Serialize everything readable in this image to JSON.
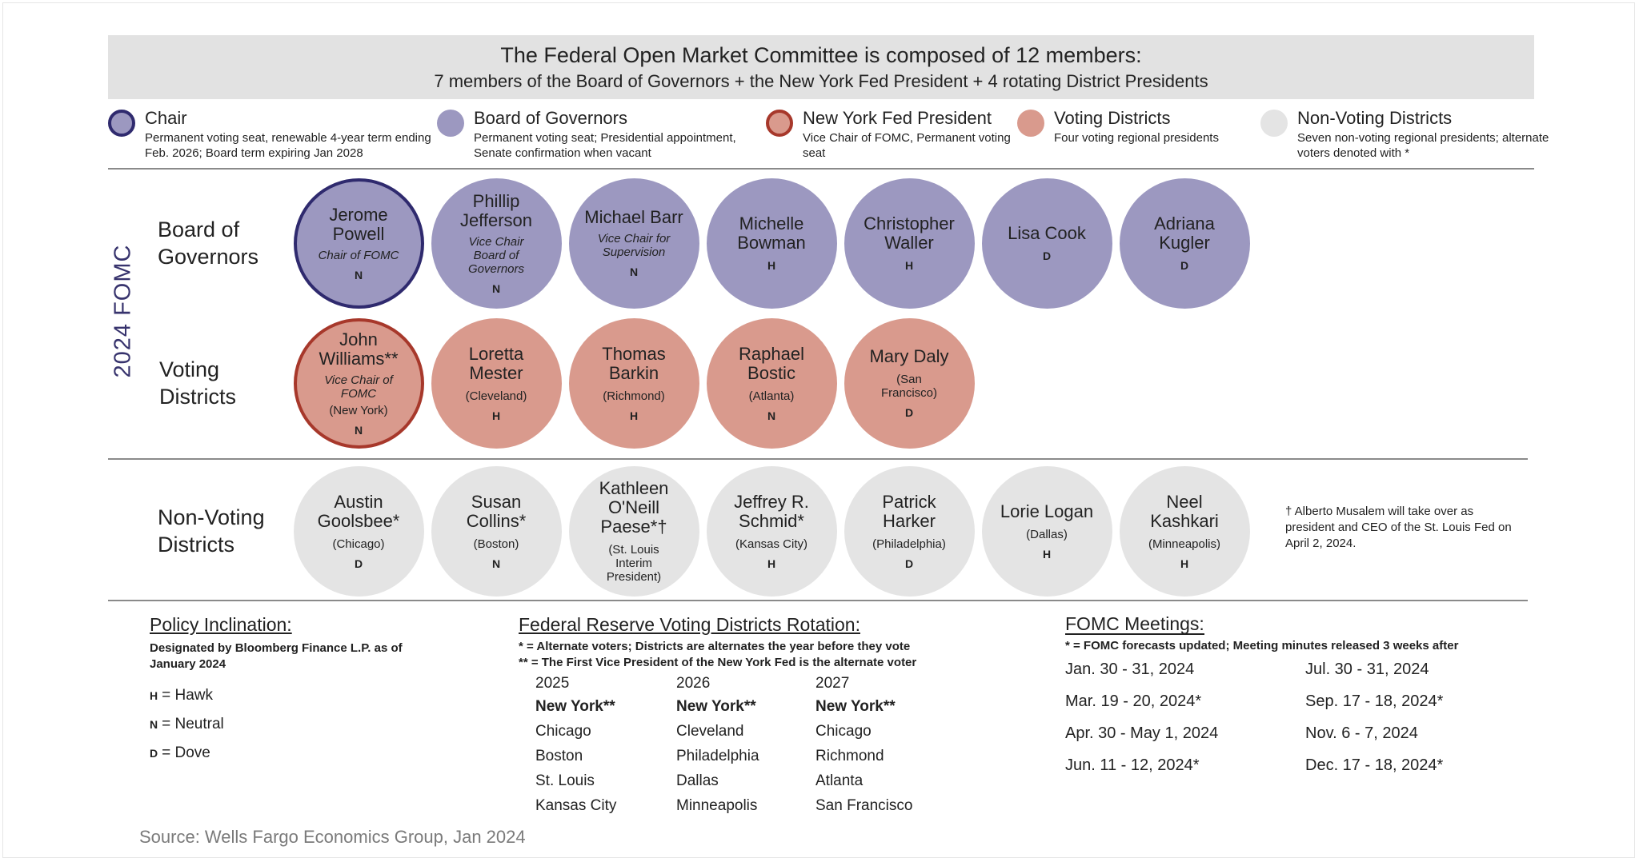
{
  "header": {
    "title": "The Federal Open Market Committee is composed of 12 members:",
    "subtitle": "7 members of the Board of Governors + the New York Fed President + 4 rotating District Presidents"
  },
  "legend": [
    {
      "label": "Chair",
      "description": "Permanent voting seat, renewable 4-year term ending Feb. 2026; Board term expiring Jan 2028",
      "color": "#9c98c0",
      "outline": "#2f2a6e"
    },
    {
      "label": "Board of Governors",
      "description": "Permanent voting seat; Presidential appointment, Senate confirmation when vacant",
      "color": "#9c98c0"
    },
    {
      "label": "New York Fed President",
      "description": "Vice Chair of FOMC, Permanent voting seat",
      "color": "#d99a8d",
      "outline": "#a7382b"
    },
    {
      "label": "Voting Districts",
      "description": "Four voting regional presidents",
      "color": "#d99a8d"
    },
    {
      "label": "Non-Voting Districts",
      "description": "Seven non-voting regional presidents; alternate voters denoted with *",
      "color": "#e4e4e4"
    }
  ],
  "side_label": "2024 FOMC",
  "groups": [
    {
      "label": "Board of Governors",
      "color": "#9c98c0",
      "members": [
        {
          "name": "Jerome Powell",
          "role": "Chair of FOMC",
          "inclination": "N",
          "outline": "#2f2a6e"
        },
        {
          "name": "Phillip Jefferson",
          "role": "Vice Chair Board of Governors",
          "inclination": "N"
        },
        {
          "name": "Michael Barr",
          "role": "Vice Chair for Supervision",
          "inclination": "N"
        },
        {
          "name": "Michelle Bowman",
          "inclination": "H"
        },
        {
          "name": "Christopher Waller",
          "inclination": "H"
        },
        {
          "name": "Lisa Cook",
          "inclination": "D"
        },
        {
          "name": "Adriana Kugler",
          "inclination": "D"
        }
      ]
    },
    {
      "label": "Voting Districts",
      "color": "#d99a8d",
      "members": [
        {
          "name": "John Williams**",
          "role": "Vice Chair of FOMC",
          "location": "(New York)",
          "inclination": "N",
          "outline": "#a7382b"
        },
        {
          "name": "Loretta Mester",
          "location": "(Cleveland)",
          "inclination": "H"
        },
        {
          "name": "Thomas Barkin",
          "location": "(Richmond)",
          "inclination": "H"
        },
        {
          "name": "Raphael Bostic",
          "location": "(Atlanta)",
          "inclination": "N"
        },
        {
          "name": "Mary Daly",
          "location": "(San Francisco)",
          "inclination": "D"
        }
      ]
    },
    {
      "label": "Non-Voting Districts",
      "color": "#e4e4e4",
      "members": [
        {
          "name": "Austin Goolsbee*",
          "location": "(Chicago)",
          "inclination": "D"
        },
        {
          "name": "Susan Collins*",
          "location": "(Boston)",
          "inclination": "N"
        },
        {
          "name": "Kathleen O'Neill Paese*†",
          "location": "(St. Louis Interim President)"
        },
        {
          "name": "Jeffrey R. Schmid*",
          "location": "(Kansas City)",
          "inclination": "H"
        },
        {
          "name": "Patrick Harker",
          "location": "(Philadelphia)",
          "inclination": "D"
        },
        {
          "name": "Lorie Logan",
          "location": "(Dallas)",
          "inclination": "H"
        },
        {
          "name": "Neel Kashkari",
          "location": "(Minneapolis)",
          "inclination": "H"
        }
      ]
    }
  ],
  "note": "† Alberto Musalem will take over as president and CEO of the St. Louis Fed on April 2, 2024.",
  "policy": {
    "title": "Policy Inclination:",
    "subtitle": "Designated by Bloomberg Finance L.P. as of January 2024",
    "items": [
      {
        "code": "H",
        "meaning": "= Hawk"
      },
      {
        "code": "N",
        "meaning": "= Neutral"
      },
      {
        "code": "D",
        "meaning": "= Dove"
      }
    ]
  },
  "rotation": {
    "title": "Federal Reserve Voting Districts Rotation:",
    "notes": [
      "* = Alternate voters; Districts are alternates the year before they vote",
      "** = The First Vice President of the New York Fed is the alternate voter"
    ],
    "columns": [
      {
        "year": "2025",
        "districts": [
          "New York**",
          "Chicago",
          "Boston",
          "St. Louis",
          "Kansas City"
        ]
      },
      {
        "year": "2026",
        "districts": [
          "New York**",
          "Cleveland",
          "Philadelphia",
          "Dallas",
          "Minneapolis"
        ]
      },
      {
        "year": "2027",
        "districts": [
          "New York**",
          "Chicago",
          "Richmond",
          "Atlanta",
          "San Francisco"
        ]
      }
    ]
  },
  "meetings": {
    "title": "FOMC Meetings:",
    "note": "* = FOMC forecasts updated; Meeting minutes released 3 weeks after",
    "dates": [
      "Jan. 30 - 31, 2024",
      "Mar. 19 - 20, 2024*",
      "Apr. 30 - May 1, 2024",
      "Jun. 11 - 12, 2024*",
      "Jul. 30 - 31, 2024",
      "Sep. 17 - 18, 2024*",
      "Nov. 6 - 7, 2024",
      "Dec. 17 - 18, 2024*"
    ]
  },
  "source": "Source: Wells Fargo Economics Group, Jan 2024"
}
